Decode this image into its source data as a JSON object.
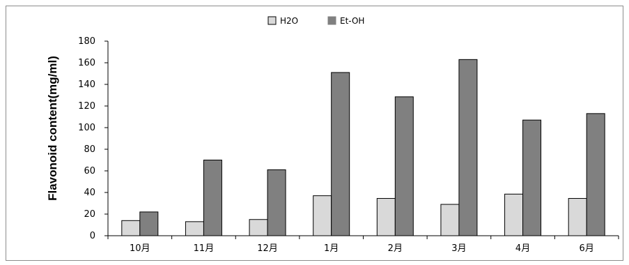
{
  "chart_data": {
    "type": "bar",
    "categories": [
      "10月",
      "11月",
      "12月",
      "1月",
      "2月",
      "3月",
      "4月",
      "6月"
    ],
    "series": [
      {
        "name": "H2O",
        "color": "#d9d9d9",
        "values": [
          14,
          13,
          15,
          37,
          34.5,
          29,
          38.5,
          34.5
        ]
      },
      {
        "name": "Et-OH",
        "color": "#808080",
        "values": [
          22,
          70,
          61,
          151,
          128.5,
          163,
          107,
          113
        ]
      }
    ],
    "title": "",
    "xlabel": "",
    "ylabel": "Flavonoid content(mg/ml)",
    "ylim": [
      0,
      180
    ],
    "yticks": [
      0,
      20,
      40,
      60,
      80,
      100,
      120,
      140,
      160,
      180
    ],
    "grid": false,
    "legend_position": "top-center"
  }
}
